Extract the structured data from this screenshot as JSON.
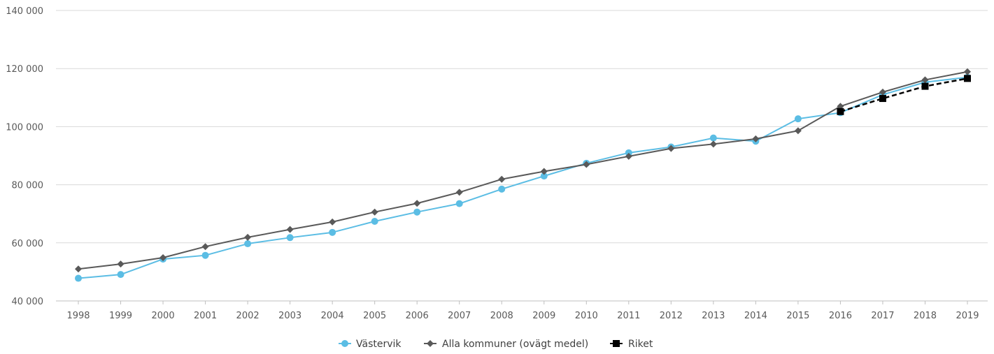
{
  "chart_data": {
    "type": "line",
    "title": "",
    "xlabel": "",
    "ylabel": "",
    "ylim": [
      40000,
      140000
    ],
    "yticks": [
      40000,
      60000,
      80000,
      100000,
      120000,
      140000
    ],
    "ytick_labels": [
      "40 000",
      "60 000",
      "80 000",
      "100 000",
      "120 000",
      "140 000"
    ],
    "grid": "horizontal",
    "legend_position": "bottom",
    "x": [
      "1998",
      "1999",
      "2000",
      "2001",
      "2002",
      "2003",
      "2004",
      "2005",
      "2006",
      "2007",
      "2008",
      "2009",
      "2010",
      "2011",
      "2012",
      "2013",
      "2014",
      "2015",
      "2016",
      "2017",
      "2018",
      "2019"
    ],
    "series": [
      {
        "name": "Västervik",
        "color": "#5bbde4",
        "marker": "circle",
        "line": "solid",
        "values": [
          47800,
          49100,
          54400,
          55700,
          59700,
          61800,
          63600,
          67400,
          70600,
          73500,
          78500,
          83000,
          87400,
          91000,
          93000,
          96100,
          95000,
          102700,
          104800,
          111000,
          115300,
          117000
        ]
      },
      {
        "name": "Alla kommuner (ovägt medel)",
        "color": "#595959",
        "marker": "diamond",
        "line": "solid",
        "values": [
          51000,
          52700,
          54900,
          58700,
          61900,
          64600,
          67200,
          70600,
          73600,
          77400,
          81900,
          84600,
          87000,
          89800,
          92500,
          94000,
          95800,
          98600,
          107000,
          111900,
          116100,
          118900
        ]
      },
      {
        "name": "Riket",
        "color": "#000000",
        "marker": "square",
        "line": "dashed",
        "values": [
          null,
          null,
          null,
          null,
          null,
          null,
          null,
          null,
          null,
          null,
          null,
          null,
          null,
          null,
          null,
          null,
          null,
          null,
          105200,
          109700,
          113900,
          116600
        ]
      }
    ]
  }
}
